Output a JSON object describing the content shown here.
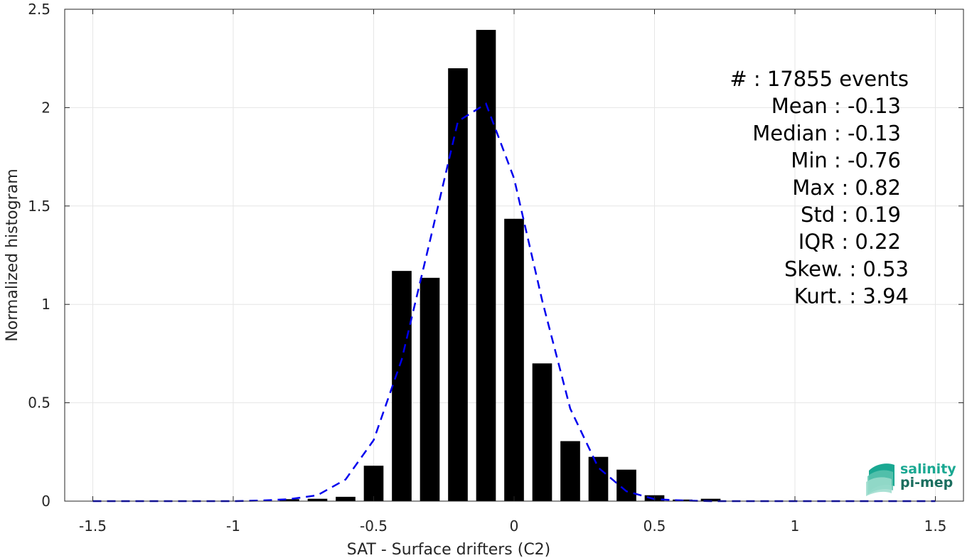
{
  "chart_data": {
    "type": "bar",
    "xlabel": "SAT - Surface drifters (C2)",
    "ylabel": "Normalized histogram",
    "xlim": [
      -1.6,
      1.6
    ],
    "ylim": [
      0,
      2.5
    ],
    "xticks": [
      -1.5,
      -1,
      -0.5,
      0,
      0.5,
      1,
      1.5
    ],
    "xtick_labels": [
      "-1.5",
      "-1",
      "-0.5",
      "0",
      "0.5",
      "1",
      "1.5"
    ],
    "yticks": [
      0,
      0.5,
      1,
      1.5,
      2,
      2.5
    ],
    "ytick_labels": [
      "0",
      "0.5",
      "1",
      "1.5",
      "2",
      "2.5"
    ],
    "grid": true,
    "bar_width": 0.07,
    "bar_color": "#000000",
    "bars": {
      "x": [
        -0.8,
        -0.7,
        -0.6,
        -0.5,
        -0.4,
        -0.3,
        -0.2,
        -0.1,
        0.0,
        0.1,
        0.2,
        0.3,
        0.4,
        0.5,
        0.6,
        0.7
      ],
      "values": [
        0.01,
        0.012,
        0.022,
        0.18,
        1.17,
        1.135,
        2.2,
        2.395,
        1.435,
        0.7,
        0.305,
        0.225,
        0.16,
        0.03,
        0.008,
        0.012
      ]
    },
    "fit_line": {
      "style": "dashed",
      "color": "#0000ee",
      "x": [
        -1.5,
        -1.4,
        -1.3,
        -1.2,
        -1.1,
        -1.0,
        -0.9,
        -0.8,
        -0.7,
        -0.6,
        -0.5,
        -0.4,
        -0.3,
        -0.2,
        -0.1,
        0.0,
        0.1,
        0.2,
        0.3,
        0.4,
        0.5,
        0.6,
        0.7,
        0.8,
        0.9,
        1.0,
        1.1,
        1.2,
        1.3,
        1.4,
        1.5
      ],
      "values": [
        0,
        0,
        0,
        0,
        0,
        0,
        0.003,
        0.01,
        0.03,
        0.11,
        0.31,
        0.72,
        1.32,
        1.93,
        2.02,
        1.64,
        1.02,
        0.47,
        0.17,
        0.05,
        0.01,
        0.003,
        0,
        0,
        0,
        0,
        0,
        0,
        0,
        0,
        0
      ]
    },
    "stats": [
      {
        "label": "#  : 17855 events"
      },
      {
        "label": "Mean : -0.13"
      },
      {
        "label": "Median : -0.13"
      },
      {
        "label": "Min : -0.76"
      },
      {
        "label": "Max : 0.82"
      },
      {
        "label": "Std : 0.19"
      },
      {
        "label": "IQR : 0.22"
      },
      {
        "label": "Skew. : 0.53"
      },
      {
        "label": "Kurt. : 3.94"
      }
    ]
  },
  "logo": {
    "line1": "salinity",
    "line2": "pi-mep",
    "color_line1": "#1aa892",
    "color_line2": "#1b6e5f"
  }
}
